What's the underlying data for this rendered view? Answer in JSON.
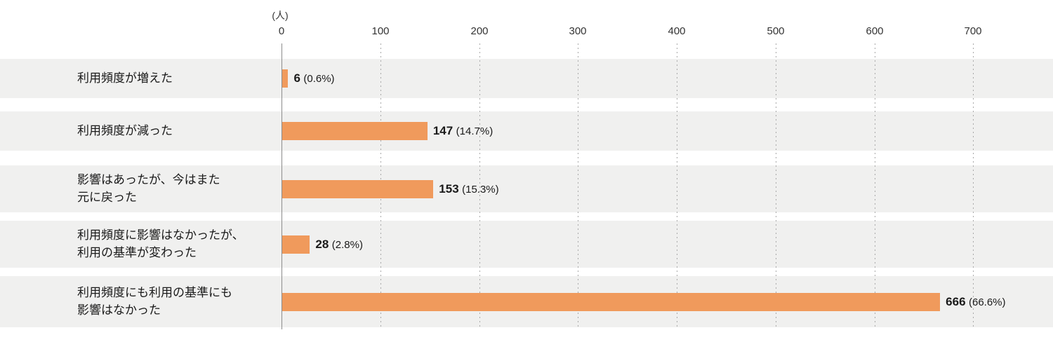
{
  "chart_data": {
    "type": "bar",
    "orientation": "horizontal",
    "unit_label": "(人)",
    "categories": [
      "利用頻度が増えた",
      "利用頻度が減った",
      "影響はあったが、今はまた\n元に戻った",
      "利用頻度に影響はなかったが、\n利用の基準が変わった",
      "利用頻度にも利用の基準にも\n影響はなかった"
    ],
    "values": [
      6,
      147,
      153,
      28,
      666
    ],
    "percent_labels": [
      "(0.6%)",
      "(14.7%)",
      "(15.3%)",
      "(2.8%)",
      "(66.6%)"
    ],
    "x_ticks": [
      "0",
      "100",
      "200",
      "300",
      "400",
      "500",
      "600",
      "700"
    ],
    "xlim": [
      0,
      700
    ],
    "grid": "dotted-vertical",
    "legend": "none",
    "bar_color": "#F09A5C",
    "band_color": "#F0F0EF",
    "axis_line_color": "#8c8c8c"
  }
}
